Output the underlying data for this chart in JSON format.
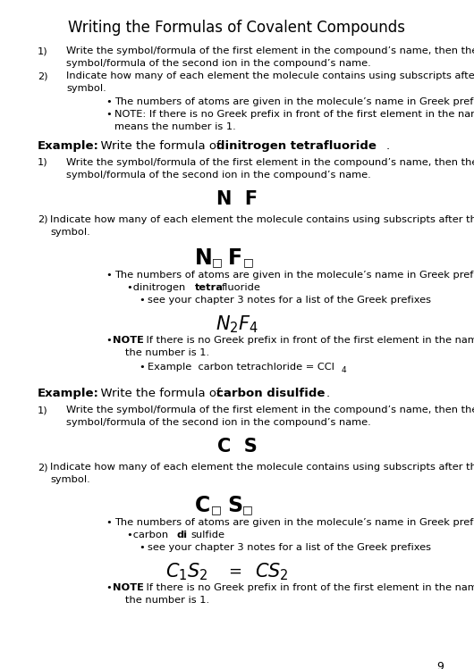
{
  "title": "Writing the Formulas of Covalent Compounds",
  "background_color": "#ffffff",
  "page_number": "9",
  "figsize": [
    5.3,
    7.49
  ],
  "dpi": 100,
  "sections": {
    "intro": {
      "item1": "Write the symbol/formula of the first element in the compound’s name, then the\nsymbol/formula of the second ion in the compound’s name.",
      "item2_line1": "Indicate how many of each element the molecule contains using subscripts after the atomic",
      "item2_line2": "symbol.",
      "bullet1": "The numbers of atoms are given in the molecule’s name in Greek prefixes",
      "bullet2_line1": "NOTE: If there is no Greek prefix in front of the first element in the name, that",
      "bullet2_line2": "means the number is 1."
    },
    "example1": {
      "header_plain": "  Write the formula of ",
      "header_bold": "dinitrogen tetrafluoride",
      "formula1": "N  F",
      "step2_line1": "Indicate how many of each element the molecule contains using subscripts after the atomic",
      "step2_line2": "symbol.",
      "bullet1": "The numbers of atoms are given in the molecule’s name in Greek prefixes.",
      "subbullet_pre": "•dinitrogen ",
      "subbullet_bold": "tetra",
      "subbullet_post": "fluoride",
      "subbullet2": "see your chapter 3 notes for a list of the Greek prefixes",
      "note_line1": ": If there is no Greek prefix in front of the first element in the name, then",
      "note_line2": "the number is 1.",
      "example_line": "Example  carbon tetrachloride = CCl"
    },
    "example2": {
      "header_plain": "  Write the formula of ",
      "header_bold": "carbon disulfide",
      "formula1": "C  S",
      "step2_line1": "Indicate how many of each element the molecule contains using subscripts after the atomic",
      "step2_line2": "symbol.",
      "bullet1": "The numbers of atoms are given in the molecule’s name in Greek prefixes.",
      "subbullet_pre": "carbon ",
      "subbullet_bold": "di",
      "subbullet_post": "sulfide",
      "subbullet2": "see your chapter 3 notes for a list of the Greek prefixes",
      "note_line1": ": If there is no Greek prefix in front of the first element in the name, then",
      "note_line2": "the number is 1."
    }
  }
}
